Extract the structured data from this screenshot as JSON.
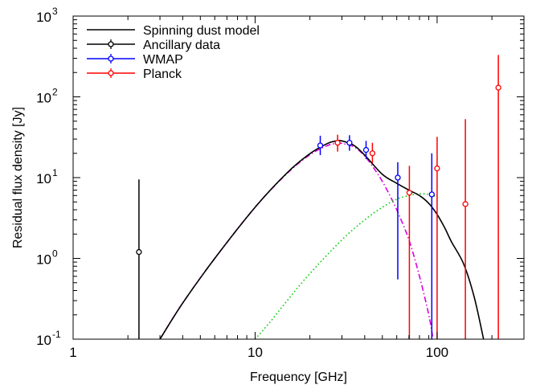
{
  "chart_data": {
    "type": "scatter",
    "title": "",
    "xlabel": "Frequency [GHz]",
    "ylabel": "Residual flux density [Jy]",
    "x_scale": "log",
    "y_scale": "log",
    "xlim": [
      1,
      300
    ],
    "ylim": [
      0.1,
      1000
    ],
    "x_ticks": [
      {
        "value": 1,
        "label": "1"
      },
      {
        "value": 10,
        "label": "10"
      },
      {
        "value": 100,
        "label": "100"
      }
    ],
    "y_ticks": [
      {
        "value": 0.1,
        "mantissa": "10",
        "exponent": "-1"
      },
      {
        "value": 1,
        "mantissa": "10",
        "exponent": "0"
      },
      {
        "value": 10,
        "mantissa": "10",
        "exponent": "1"
      },
      {
        "value": 100,
        "mantissa": "10",
        "exponent": "2"
      },
      {
        "value": 1000,
        "mantissa": "10",
        "exponent": "3"
      }
    ],
    "grid": false,
    "legend_position": "top-left",
    "legend": [
      {
        "label": "Spinning dust model",
        "kind": "line",
        "color": "#000000"
      },
      {
        "label": "Ancillary data",
        "kind": "errorbar",
        "color": "#000000"
      },
      {
        "label": "WMAP",
        "kind": "errorbar",
        "color": "#0000ff"
      },
      {
        "label": "Planck",
        "kind": "errorbar",
        "color": "#ff0000"
      }
    ],
    "series": [
      {
        "name": "Spinning dust model",
        "kind": "line",
        "color": "#000000",
        "style": "solid",
        "x": [
          3,
          4,
          6,
          10,
          15,
          20,
          25,
          28,
          30,
          35,
          40,
          50,
          60,
          70,
          80,
          90,
          100,
          110,
          120,
          140,
          160,
          180
        ],
        "y": [
          0.1,
          0.28,
          1.0,
          4.3,
          11.5,
          19.8,
          26.5,
          28.5,
          28.5,
          25.0,
          19.0,
          11.0,
          8.5,
          7.0,
          6.0,
          4.8,
          3.5,
          2.4,
          1.6,
          0.85,
          0.33,
          0.1
        ]
      },
      {
        "kind": "line",
        "color": "#dd00dd",
        "style": "dash-dot",
        "x": [
          3,
          4,
          6,
          10,
          15,
          20,
          25,
          28,
          30,
          35,
          40,
          45,
          50,
          55,
          60,
          70,
          80,
          90,
          95
        ],
        "y": [
          0.1,
          0.28,
          1.0,
          4.3,
          11.3,
          19.2,
          25.0,
          26.5,
          26.5,
          24.0,
          18.5,
          13.0,
          9.0,
          6.0,
          4.0,
          1.7,
          0.6,
          0.2,
          0.1
        ]
      },
      {
        "kind": "line",
        "color": "#00cc00",
        "style": "dotted",
        "x": [
          10,
          12,
          15,
          20,
          30,
          40,
          50,
          60,
          70,
          80,
          90,
          100
        ],
        "y": [
          0.1,
          0.16,
          0.3,
          0.65,
          1.7,
          3.0,
          4.3,
          5.4,
          6.0,
          6.3,
          6.2,
          5.8
        ]
      },
      {
        "name": "Ancillary data",
        "kind": "errorbar",
        "color": "#000000",
        "points": [
          {
            "x": 2.3,
            "y": 1.2,
            "ylo": 0.1,
            "yhi": 9.5
          }
        ]
      },
      {
        "name": "WMAP",
        "kind": "errorbar",
        "color": "#0000ff",
        "points": [
          {
            "x": 22.8,
            "y": 25.0,
            "ylo": 19.0,
            "yhi": 33.0
          },
          {
            "x": 33.0,
            "y": 27.0,
            "ylo": 21.5,
            "yhi": 33.5
          },
          {
            "x": 40.7,
            "y": 22.0,
            "ylo": 17.0,
            "yhi": 28.5
          },
          {
            "x": 60.8,
            "y": 10.0,
            "ylo": 0.55,
            "yhi": 15.5
          },
          {
            "x": 93.5,
            "y": 6.2,
            "ylo": 0.1,
            "yhi": 20.0
          }
        ]
      },
      {
        "name": "Planck",
        "kind": "errorbar",
        "color": "#ff0000",
        "points": [
          {
            "x": 28.4,
            "y": 27.0,
            "ylo": 21.0,
            "yhi": 34.0
          },
          {
            "x": 44.1,
            "y": 20.0,
            "ylo": 15.0,
            "yhi": 27.0
          },
          {
            "x": 70.4,
            "y": 6.5,
            "ylo": 0.1,
            "yhi": 14.0
          },
          {
            "x": 100,
            "y": 13.0,
            "ylo": 0.1,
            "yhi": 32.0
          },
          {
            "x": 143,
            "y": 4.7,
            "ylo": 0.1,
            "yhi": 53.0
          },
          {
            "x": 217,
            "y": 130.0,
            "ylo": 0.1,
            "yhi": 330.0
          }
        ]
      }
    ]
  }
}
